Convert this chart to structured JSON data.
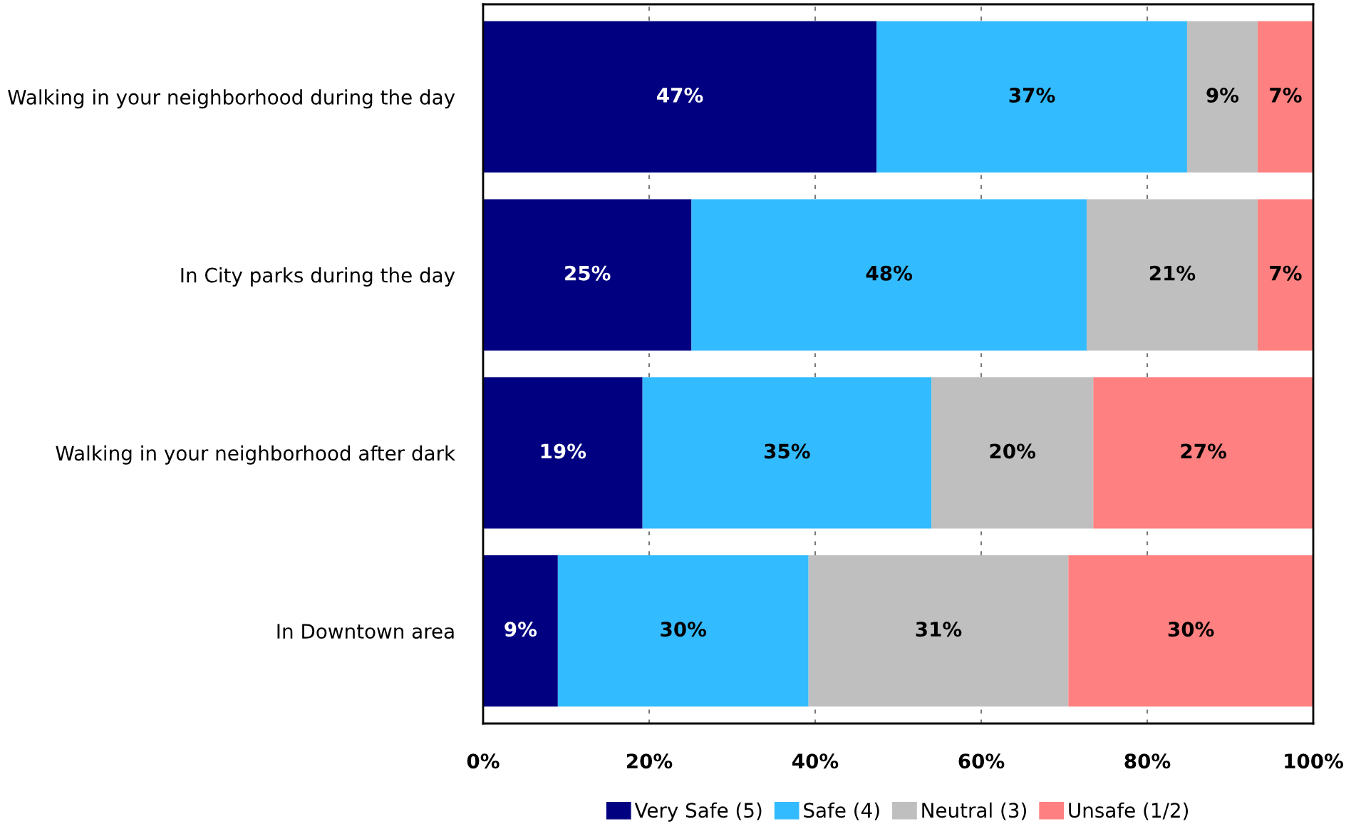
{
  "chart_data": {
    "type": "bar",
    "orientation": "horizontal",
    "stacked": true,
    "categories": [
      "Walking in your neighborhood during the day",
      "In City parks during the day",
      "Walking in your neighborhood after dark",
      "In Downtown area"
    ],
    "series": [
      {
        "name": "Very Safe (5)",
        "color": "#000080",
        "values": [
          47.4,
          25.1,
          19.2,
          9.0
        ],
        "value_labels": [
          "47%",
          "25%",
          "19%",
          "9%"
        ]
      },
      {
        "name": "Safe (4)",
        "color": "#33bbff",
        "values": [
          37.4,
          47.6,
          34.8,
          30.2
        ],
        "value_labels": [
          "37%",
          "48%",
          "35%",
          "30%"
        ]
      },
      {
        "name": "Neutral (3)",
        "color": "#bfbfbf",
        "values": [
          8.5,
          20.6,
          19.5,
          31.3
        ],
        "value_labels": [
          "9%",
          "21%",
          "20%",
          "31%"
        ]
      },
      {
        "name": "Unsafe (1/2)",
        "color": "#ff8080",
        "values": [
          6.7,
          6.7,
          26.5,
          29.5
        ],
        "value_labels": [
          "7%",
          "7%",
          "27%",
          "30%"
        ]
      }
    ],
    "xlim": [
      0,
      100
    ],
    "xticks": [
      {
        "value": 0,
        "label": "0%"
      },
      {
        "value": 20,
        "label": "20%"
      },
      {
        "value": 40,
        "label": "40%"
      },
      {
        "value": 60,
        "label": "60%"
      },
      {
        "value": 80,
        "label": "80%"
      },
      {
        "value": 100,
        "label": "100%"
      }
    ],
    "grid": "x",
    "legend": "bottom"
  }
}
